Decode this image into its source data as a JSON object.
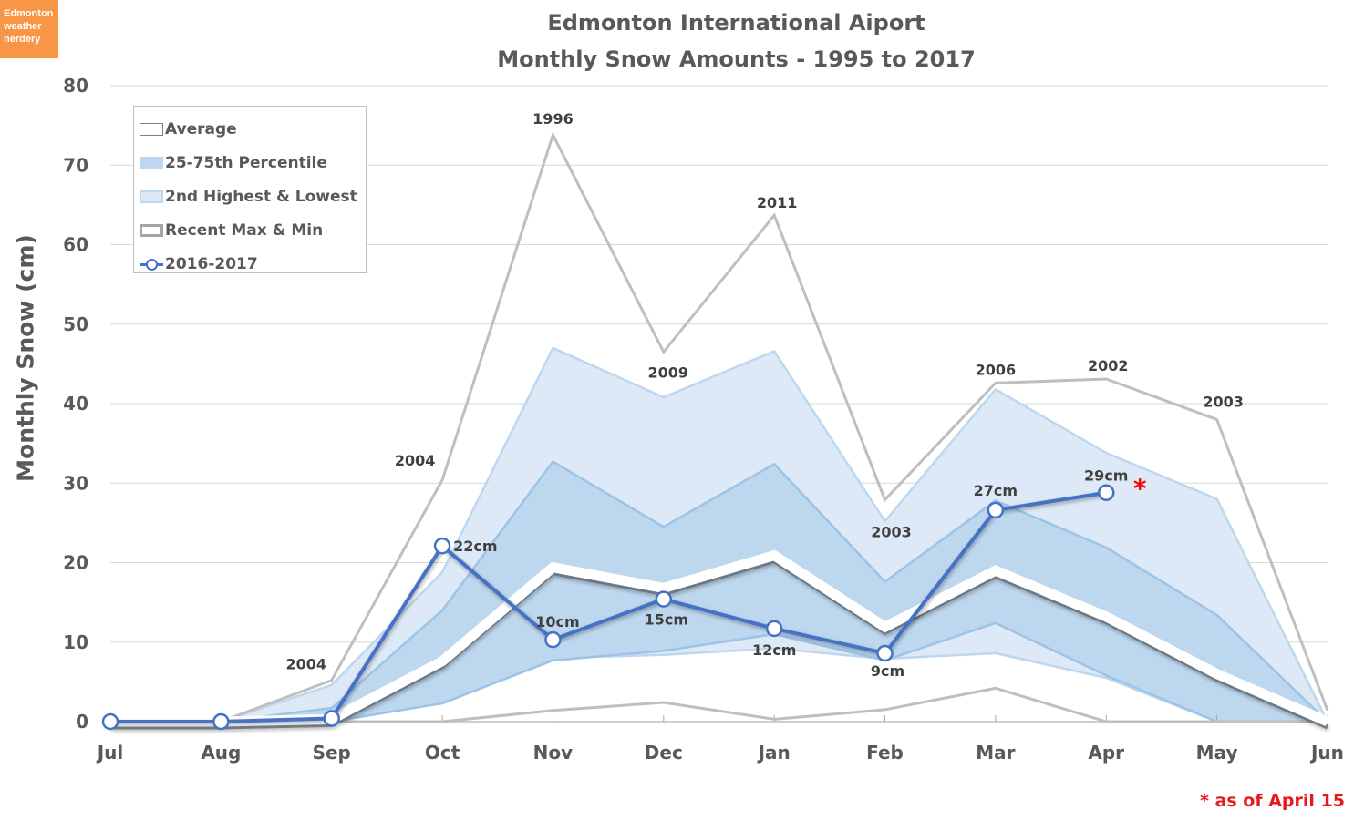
{
  "badge": {
    "lines": [
      "Edmonton",
      "weather",
      "nerdery"
    ],
    "color": "#f79646"
  },
  "title": {
    "line1": "Edmonton International Aiport",
    "line2": "Monthly Snow Amounts - 1995 to 2017"
  },
  "footnote": "* as of April 15",
  "legend": {
    "items": [
      {
        "label": "Average"
      },
      {
        "label": "25-75th Percentile"
      },
      {
        "label": "2nd Highest & Lowest"
      },
      {
        "label": "Recent Max & Min"
      },
      {
        "label": "2016-2017"
      }
    ]
  },
  "chart_data": {
    "type": "line",
    "title": "Edmonton International Aiport Monthly Snow Amounts - 1995 to 2017",
    "xlabel": "",
    "ylabel": "Monthly Snow (cm)",
    "ylim": [
      0,
      80
    ],
    "yticks": [
      0,
      10,
      20,
      30,
      40,
      50,
      60,
      70,
      80
    ],
    "grid": true,
    "legend_position": "top-left",
    "categories": [
      "Jul",
      "Aug",
      "Sep",
      "Oct",
      "Nov",
      "Dec",
      "Jan",
      "Feb",
      "Mar",
      "Apr",
      "May",
      "Jun"
    ],
    "series": [
      {
        "name": "Recent Max",
        "values": [
          0,
          0,
          5.2,
          30.4,
          73.8,
          46.5,
          63.7,
          27.9,
          42.6,
          43.1,
          38.0,
          1.4
        ],
        "color": "#bfbfbf",
        "labels": [
          null,
          null,
          "2004",
          "2004",
          "1996",
          "2009",
          "2011",
          "2003",
          "2006",
          "2002",
          "2003",
          null
        ]
      },
      {
        "name": "Recent Min",
        "values": [
          0,
          0,
          0,
          0,
          1.4,
          2.4,
          0.3,
          1.5,
          4.2,
          0,
          0,
          0
        ],
        "color": "#bfbfbf"
      },
      {
        "name": "2nd Highest",
        "values": [
          0,
          0,
          4.6,
          18.8,
          47.0,
          40.8,
          46.6,
          25.2,
          41.8,
          33.8,
          28.0,
          0
        ],
        "color": "#dde9f6"
      },
      {
        "name": "2nd Lowest",
        "values": [
          0,
          0,
          0,
          2.3,
          8.0,
          8.4,
          9.2,
          7.9,
          8.6,
          5.5,
          0,
          0
        ],
        "color": "#dde9f6"
      },
      {
        "name": "75th Percentile",
        "values": [
          0,
          0,
          1.7,
          14.0,
          32.7,
          24.5,
          32.4,
          17.6,
          27.8,
          21.9,
          13.4,
          0
        ],
        "color": "#bdd7ee"
      },
      {
        "name": "25th Percentile",
        "values": [
          0,
          0,
          0,
          2.3,
          7.7,
          8.9,
          11.0,
          7.7,
          12.4,
          5.8,
          0,
          0
        ],
        "color": "#bdd7ee"
      },
      {
        "name": "Average",
        "values": [
          0,
          0,
          0.3,
          7.6,
          19.4,
          16.8,
          20.9,
          11.9,
          19.0,
          13.2,
          6.0,
          0
        ],
        "color": "#ffffff"
      },
      {
        "name": "2016-2017",
        "values": [
          0,
          0,
          0.4,
          22.1,
          10.3,
          15.4,
          11.7,
          8.6,
          26.6,
          28.8,
          null,
          null
        ],
        "color": "#4472c4",
        "labels": [
          null,
          null,
          null,
          "22cm",
          "10cm",
          "15cm",
          "12cm",
          "9cm",
          "27cm",
          "29cm",
          null,
          null
        ]
      }
    ],
    "annotations": [
      {
        "text": "*",
        "near": "Apr 2016-2017",
        "color": "#ff0000"
      }
    ]
  }
}
